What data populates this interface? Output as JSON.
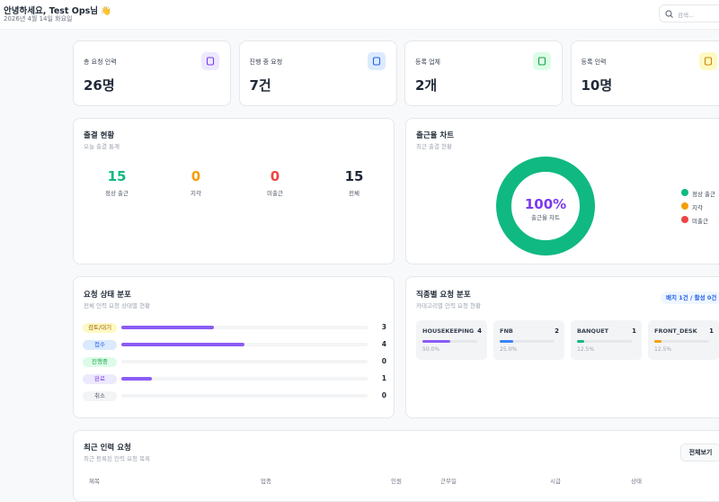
{
  "header": {
    "greeting": "안녕하세요, Test Ops님 👋",
    "date": "2026년 4월 14일 화요일",
    "search_placeholder": "검색..."
  },
  "stats": [
    {
      "label": "총 요청 인력",
      "value": "26명"
    },
    {
      "label": "진행 중 요청",
      "value": "7건"
    },
    {
      "label": "등록 업체",
      "value": "2개"
    },
    {
      "label": "등록 인력",
      "value": "10명"
    }
  ],
  "attendance": {
    "title": "출결 현황",
    "subtitle": "오늘 출결 통계",
    "items": [
      {
        "label": "정상 출근",
        "value": 15,
        "color": "#10b981"
      },
      {
        "label": "지각",
        "value": 0,
        "color": "#f59e0b"
      },
      {
        "label": "미출근",
        "value": 0,
        "color": "#ef4444"
      },
      {
        "label": "전체",
        "value": 15,
        "color": "#1f2937"
      }
    ]
  },
  "chart_data": {
    "type": "pie",
    "title": "출근율 차트",
    "subtitle": "최근 출결 현황",
    "center_value": "100%",
    "center_label": "출근율 차트",
    "categories": [
      "정상 출근",
      "지각",
      "미출근"
    ],
    "values": [
      15,
      0,
      0
    ],
    "colors": [
      "#10b981",
      "#f59e0b",
      "#ef4444"
    ],
    "legend": "right"
  },
  "status": {
    "title": "요청 상태 분포",
    "subtitle": "전체 인력 요청 상태별 현황",
    "color": "#8b5cf6",
    "rows": [
      {
        "label": "검토/대기",
        "value": 3
      },
      {
        "label": "접수",
        "value": 4
      },
      {
        "label": "진행중",
        "value": 0
      },
      {
        "label": "완료",
        "value": 1
      },
      {
        "label": "취소",
        "value": 0
      }
    ]
  },
  "categories": {
    "title": "직종별 요청 분포",
    "subtitle": "카테고리별 인력 요청 현황",
    "badge": "배치 1건 / 활성 0건",
    "items": [
      {
        "name": "HOUSEKEEPING",
        "count": 4,
        "percent": 50,
        "percent_label": "50.0%",
        "color": "#8b5cf6"
      },
      {
        "name": "FNB",
        "count": 2,
        "percent": 25,
        "percent_label": "25.0%",
        "color": "#3b82f6"
      },
      {
        "name": "BANQUET",
        "count": 1,
        "percent": 12.5,
        "percent_label": "12.5%",
        "color": "#10b981"
      },
      {
        "name": "FRONT_DESK",
        "count": 1,
        "percent": 12.5,
        "percent_label": "12.5%",
        "color": "#f59e0b"
      }
    ]
  },
  "recent": {
    "title": "최근 인력 요청",
    "subtitle": "최근 등록된 인력 요청 목록",
    "button": "전체보기",
    "columns": [
      "제목",
      "업종",
      "인원",
      "근무일",
      "시급",
      "상태"
    ]
  }
}
